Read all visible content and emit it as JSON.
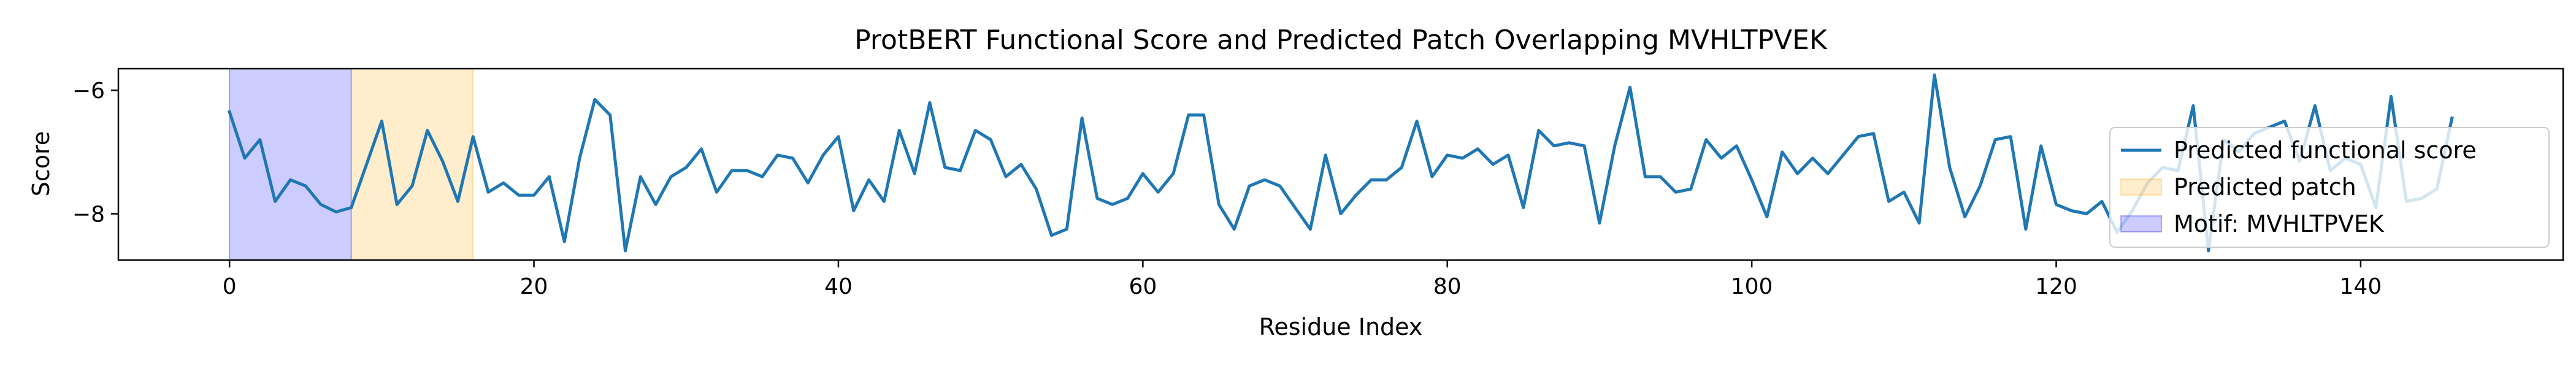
{
  "chart_data": {
    "type": "line",
    "title": "ProtBERT Functional Score and Predicted Patch Overlapping MVHLTPVEK",
    "xlabel": "Residue Index",
    "ylabel": "Score",
    "xlim": [
      -7.3,
      153.3
    ],
    "ylim": [
      -8.75,
      -5.65
    ],
    "xticks": [
      0,
      20,
      40,
      60,
      80,
      100,
      120,
      140
    ],
    "yticks": [
      -8,
      -6
    ],
    "legend_position": "right",
    "grid": false,
    "regions": [
      {
        "name": "Motif: MVHLTPVEK",
        "x_start": 0,
        "x_end": 8,
        "color": "#0000ff"
      },
      {
        "name": "Predicted patch",
        "x_start": 8,
        "x_end": 16,
        "color": "#ffa500"
      }
    ],
    "series": [
      {
        "name": "Predicted functional score",
        "color": "#1f77b4",
        "x": [
          0,
          1,
          2,
          3,
          4,
          5,
          6,
          7,
          8,
          9,
          10,
          11,
          12,
          13,
          14,
          15,
          16,
          17,
          18,
          19,
          20,
          21,
          22,
          23,
          24,
          25,
          26,
          27,
          28,
          29,
          30,
          31,
          32,
          33,
          34,
          35,
          36,
          37,
          38,
          39,
          40,
          41,
          42,
          43,
          44,
          45,
          46,
          47,
          48,
          49,
          50,
          51,
          52,
          53,
          54,
          55,
          56,
          57,
          58,
          59,
          60,
          61,
          62,
          63,
          64,
          65,
          66,
          67,
          68,
          69,
          70,
          71,
          72,
          73,
          74,
          75,
          76,
          77,
          78,
          79,
          80,
          81,
          82,
          83,
          84,
          85,
          86,
          87,
          88,
          89,
          90,
          91,
          92,
          93,
          94,
          95,
          96,
          97,
          98,
          99,
          100,
          101,
          102,
          103,
          104,
          105,
          106,
          107,
          108,
          109,
          110,
          111,
          112,
          113,
          114,
          115,
          116,
          117,
          118,
          119,
          120,
          121,
          122,
          123,
          124,
          125,
          126,
          127,
          128,
          129,
          130,
          131,
          132,
          133,
          134,
          135,
          136,
          137,
          138,
          139,
          140,
          141,
          142,
          143,
          144,
          145,
          146
        ],
        "values": [
          -6.35,
          -7.1,
          -6.8,
          -7.8,
          -7.45,
          -7.55,
          -7.85,
          -7.97,
          -7.9,
          -7.2,
          -6.5,
          -7.85,
          -7.55,
          -6.65,
          -7.15,
          -7.8,
          -6.75,
          -7.65,
          -7.5,
          -7.7,
          -7.7,
          -7.4,
          -8.45,
          -7.1,
          -6.15,
          -6.4,
          -8.6,
          -7.4,
          -7.85,
          -7.4,
          -7.25,
          -6.95,
          -7.65,
          -7.3,
          -7.3,
          -7.4,
          -7.05,
          -7.1,
          -7.5,
          -7.05,
          -6.75,
          -7.95,
          -7.45,
          -7.8,
          -6.65,
          -7.35,
          -6.2,
          -7.25,
          -7.3,
          -6.65,
          -6.8,
          -7.4,
          -7.2,
          -7.6,
          -8.35,
          -8.25,
          -6.45,
          -7.75,
          -7.85,
          -7.75,
          -7.35,
          -7.65,
          -7.35,
          -6.4,
          -6.4,
          -7.85,
          -8.25,
          -7.55,
          -7.45,
          -7.55,
          -7.9,
          -8.25,
          -7.05,
          -8.0,
          -7.7,
          -7.45,
          -7.45,
          -7.25,
          -6.5,
          -7.4,
          -7.05,
          -7.1,
          -6.95,
          -7.2,
          -7.05,
          -7.9,
          -6.65,
          -6.9,
          -6.85,
          -6.9,
          -8.15,
          -6.9,
          -5.95,
          -7.4,
          -7.4,
          -7.65,
          -7.6,
          -6.8,
          -7.1,
          -6.9,
          -7.45,
          -8.05,
          -7.0,
          -7.35,
          -7.1,
          -7.35,
          -7.05,
          -6.75,
          -6.7,
          -7.8,
          -7.65,
          -8.15,
          -5.75,
          -7.25,
          -8.05,
          -7.55,
          -6.8,
          -6.75,
          -8.25,
          -6.9,
          -7.85,
          -7.95,
          -8.0,
          -7.8,
          -8.3,
          -7.95,
          -7.5,
          -7.25,
          -7.3,
          -6.25,
          -8.6,
          -6.8,
          -7.0,
          -6.7,
          -6.6,
          -6.5,
          -7.15,
          -6.25,
          -7.3,
          -7.1,
          -7.2,
          -7.9,
          -6.1,
          -7.8,
          -7.75,
          -7.6,
          -6.45
        ]
      }
    ]
  }
}
